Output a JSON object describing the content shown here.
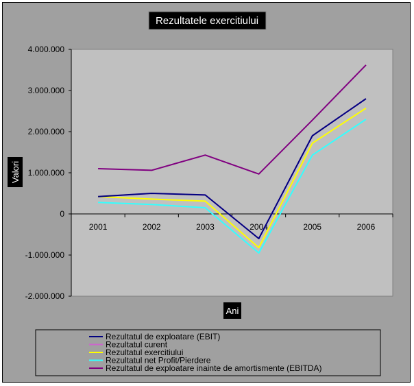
{
  "chart_data": {
    "type": "line",
    "title": "Rezultatele exercitiului",
    "xlabel": "Ani",
    "ylabel": "Valori",
    "categories": [
      "2001",
      "2002",
      "2003",
      "2004",
      "2005",
      "2006"
    ],
    "ylim": [
      -2000000,
      4000000
    ],
    "yticks": [
      4000000,
      3000000,
      2000000,
      1000000,
      0,
      -1000000,
      -2000000
    ],
    "ytick_labels": [
      "4.000.000",
      "3.000.000",
      "2.000.000",
      "1.000.000",
      "0",
      "-1.000.000",
      "-2.000.000"
    ],
    "grid": false,
    "legend_position": "bottom",
    "series": [
      {
        "name": "Rezultatul de exploatare (EBIT)",
        "color": "#000080",
        "values": [
          420000,
          500000,
          460000,
          -600000,
          1900000,
          2800000
        ]
      },
      {
        "name": "Rezultatul curent",
        "color": "#cc66cc",
        "values": [
          420000,
          500000,
          460000,
          -600000,
          1900000,
          2800000
        ]
      },
      {
        "name": "Rezultatul exercitiului",
        "color": "#ffff00",
        "values": [
          420000,
          360000,
          310000,
          -820000,
          1720000,
          2570000
        ]
      },
      {
        "name": "Rezultatul net Profit/Pierdere",
        "color": "#33ffff",
        "values": [
          280000,
          230000,
          150000,
          -950000,
          1430000,
          2300000
        ]
      },
      {
        "name": "Rezultatul de exploatare inainte de amortismente (EBITDA)",
        "color": "#800080",
        "values": [
          1100000,
          1060000,
          1430000,
          970000,
          2280000,
          3620000
        ]
      }
    ]
  }
}
